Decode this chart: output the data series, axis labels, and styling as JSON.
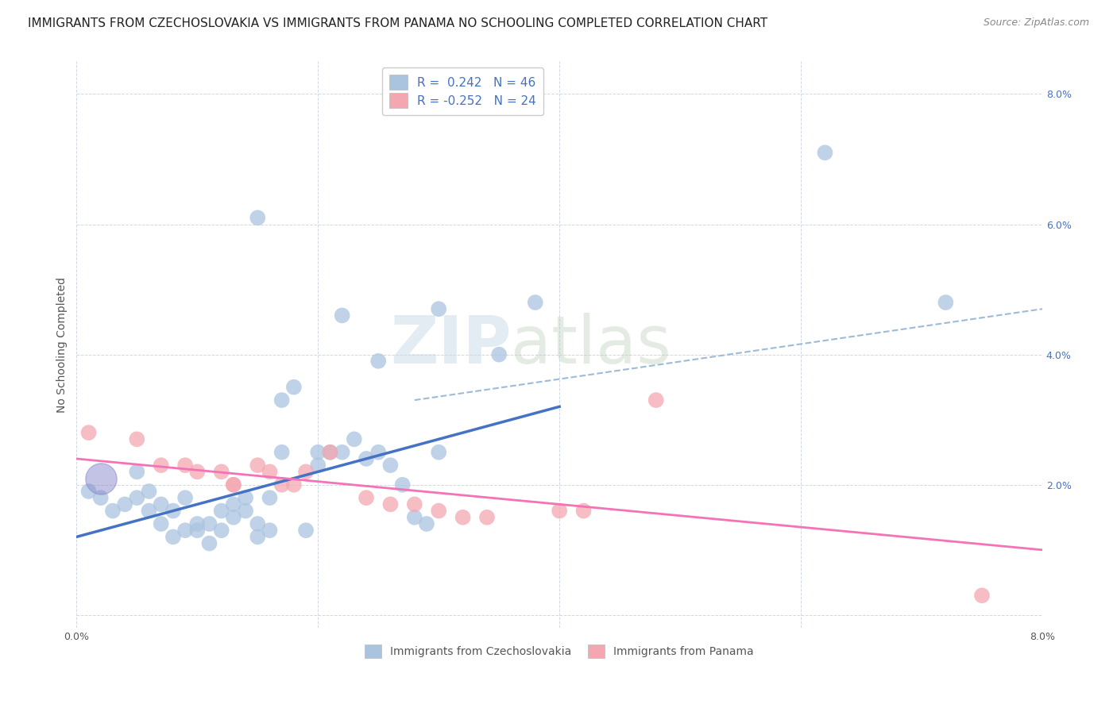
{
  "title": "IMMIGRANTS FROM CZECHOSLOVAKIA VS IMMIGRANTS FROM PANAMA NO SCHOOLING COMPLETED CORRELATION CHART",
  "source": "Source: ZipAtlas.com",
  "ylabel": "No Schooling Completed",
  "xlim": [
    0.0,
    0.08
  ],
  "ylim": [
    -0.002,
    0.085
  ],
  "yticks": [
    0.0,
    0.02,
    0.04,
    0.06,
    0.08
  ],
  "ytick_labels": [
    "",
    "2.0%",
    "4.0%",
    "6.0%",
    "8.0%"
  ],
  "xticks": [
    0.0,
    0.02,
    0.04,
    0.06,
    0.08
  ],
  "xtick_labels": [
    "0.0%",
    "",
    "",
    "",
    "8.0%"
  ],
  "legend_r1": "R =  0.242   N = 46",
  "legend_r2": "R = -0.252   N = 24",
  "color_blue": "#aac4e0",
  "color_pink": "#f4a7b0",
  "line_blue": "#4472c4",
  "line_pink": "#f472b6",
  "line_dashed": "#9dbbd8",
  "blue_scatter_x": [
    0.001,
    0.002,
    0.003,
    0.004,
    0.005,
    0.005,
    0.006,
    0.006,
    0.007,
    0.007,
    0.008,
    0.008,
    0.009,
    0.009,
    0.01,
    0.01,
    0.011,
    0.011,
    0.012,
    0.012,
    0.013,
    0.013,
    0.014,
    0.014,
    0.015,
    0.015,
    0.016,
    0.016,
    0.017,
    0.017,
    0.018,
    0.019,
    0.02,
    0.02,
    0.021,
    0.022,
    0.023,
    0.024,
    0.025,
    0.026,
    0.027,
    0.028,
    0.029,
    0.03,
    0.035,
    0.038
  ],
  "blue_scatter_y": [
    0.019,
    0.018,
    0.016,
    0.017,
    0.022,
    0.018,
    0.019,
    0.016,
    0.017,
    0.014,
    0.016,
    0.012,
    0.018,
    0.013,
    0.014,
    0.013,
    0.014,
    0.011,
    0.016,
    0.013,
    0.017,
    0.015,
    0.018,
    0.016,
    0.014,
    0.012,
    0.018,
    0.013,
    0.033,
    0.025,
    0.035,
    0.013,
    0.023,
    0.025,
    0.025,
    0.025,
    0.027,
    0.024,
    0.025,
    0.023,
    0.02,
    0.015,
    0.014,
    0.025,
    0.04,
    0.048
  ],
  "blue_scatter_x2": [
    0.015,
    0.022,
    0.025,
    0.03,
    0.062,
    0.072
  ],
  "blue_scatter_y2": [
    0.061,
    0.046,
    0.039,
    0.047,
    0.071,
    0.048
  ],
  "pink_scatter_x": [
    0.001,
    0.005,
    0.007,
    0.009,
    0.01,
    0.012,
    0.013,
    0.013,
    0.015,
    0.016,
    0.017,
    0.018,
    0.019,
    0.021,
    0.024,
    0.026,
    0.028,
    0.03,
    0.032,
    0.034,
    0.04,
    0.042,
    0.048,
    0.075
  ],
  "pink_scatter_y": [
    0.028,
    0.027,
    0.023,
    0.023,
    0.022,
    0.022,
    0.02,
    0.02,
    0.023,
    0.022,
    0.02,
    0.02,
    0.022,
    0.025,
    0.018,
    0.017,
    0.017,
    0.016,
    0.015,
    0.015,
    0.016,
    0.016,
    0.033,
    0.003
  ],
  "blue_line_x": [
    0.0,
    0.04
  ],
  "blue_line_y": [
    0.012,
    0.032
  ],
  "pink_line_x": [
    0.0,
    0.08
  ],
  "pink_line_y": [
    0.024,
    0.01
  ],
  "dash_line_x": [
    0.028,
    0.08
  ],
  "dash_line_y": [
    0.033,
    0.047
  ],
  "watermark_zip": "ZIP",
  "watermark_atlas": "atlas",
  "background_color": "#ffffff",
  "grid_color": "#d0d8e4",
  "title_fontsize": 11,
  "axis_label_fontsize": 10,
  "tick_fontsize": 9,
  "legend1_label1": "R =  0.242",
  "legend1_label2": "N = 46",
  "legend2_label1": "R = -0.252",
  "legend2_label2": "N = 24"
}
